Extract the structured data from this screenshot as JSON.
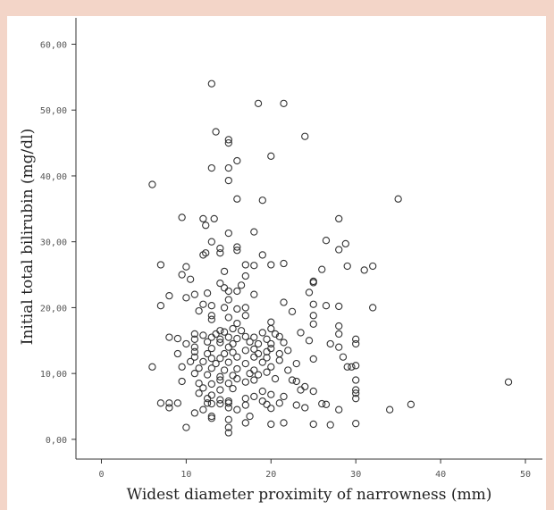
{
  "chart_data": {
    "type": "scatter",
    "xlabel": "Widest diameter proximity of narrowness (mm)",
    "ylabel": "Initial total bilirubin (mg/dl)",
    "xlim": [
      -3,
      52
    ],
    "ylim": [
      -3,
      64
    ],
    "x_ticks": [
      0,
      10,
      20,
      30,
      40,
      50
    ],
    "x_tick_labels": [
      "0",
      "10",
      "20",
      "30",
      "40",
      "50"
    ],
    "y_ticks": [
      0,
      10,
      20,
      30,
      40,
      50,
      60
    ],
    "y_tick_labels": [
      "0,00",
      "10,00",
      "20,00",
      "30,00",
      "40,00",
      "50,00",
      "60,00"
    ],
    "grid": false,
    "marker": "hollow-circle",
    "marker_color": "#333333",
    "points": [
      [
        13,
        54
      ],
      [
        18.5,
        51
      ],
      [
        21.5,
        51
      ],
      [
        13.5,
        46.7
      ],
      [
        15,
        45.5
      ],
      [
        15,
        45
      ],
      [
        24,
        46
      ],
      [
        16,
        42.3
      ],
      [
        13,
        41.2
      ],
      [
        15,
        41.2
      ],
      [
        20,
        43
      ],
      [
        15,
        39.3
      ],
      [
        6,
        38.7
      ],
      [
        16,
        36.5
      ],
      [
        19,
        36.3
      ],
      [
        35,
        36.5
      ],
      [
        9.5,
        33.7
      ],
      [
        12,
        33.5
      ],
      [
        13.3,
        33.5
      ],
      [
        28,
        33.5
      ],
      [
        12.3,
        32.5
      ],
      [
        15,
        31.3
      ],
      [
        18,
        31.5
      ],
      [
        13,
        30
      ],
      [
        26.5,
        30.2
      ],
      [
        28.8,
        29.7
      ],
      [
        16,
        29.2
      ],
      [
        16,
        28.7
      ],
      [
        28,
        28.8
      ],
      [
        12.3,
        28.3
      ],
      [
        12,
        28
      ],
      [
        14,
        29
      ],
      [
        14,
        28.3
      ],
      [
        19,
        28
      ],
      [
        7,
        26.5
      ],
      [
        10,
        26.2
      ],
      [
        17,
        26.5
      ],
      [
        18,
        26.4
      ],
      [
        20,
        26.5
      ],
      [
        21.5,
        26.7
      ],
      [
        26,
        25.8
      ],
      [
        29,
        26.3
      ],
      [
        31,
        25.7
      ],
      [
        32,
        26.3
      ],
      [
        9.5,
        25
      ],
      [
        14.5,
        25.5
      ],
      [
        10.5,
        24.3
      ],
      [
        17,
        24.8
      ],
      [
        25,
        24
      ],
      [
        25,
        23.8
      ],
      [
        14,
        23.7
      ],
      [
        16.5,
        23.4
      ],
      [
        15,
        22.5
      ],
      [
        11,
        22
      ],
      [
        12.5,
        22.2
      ],
      [
        14.5,
        23
      ],
      [
        16,
        22.5
      ],
      [
        18,
        22
      ],
      [
        24.5,
        22.3
      ],
      [
        8,
        21.8
      ],
      [
        10,
        21.5
      ],
      [
        15,
        21.2
      ],
      [
        21.5,
        20.8
      ],
      [
        7,
        20.3
      ],
      [
        12,
        20.5
      ],
      [
        13,
        20.3
      ],
      [
        14.5,
        20
      ],
      [
        16,
        19.8
      ],
      [
        17,
        20
      ],
      [
        22.5,
        19.4
      ],
      [
        25,
        20.5
      ],
      [
        26.5,
        20.3
      ],
      [
        28,
        20.2
      ],
      [
        32,
        20
      ],
      [
        11.5,
        19.5
      ],
      [
        13,
        18.8
      ],
      [
        15,
        18.5
      ],
      [
        17,
        18.8
      ],
      [
        25,
        18.8
      ],
      [
        13,
        18.2
      ],
      [
        16,
        17.6
      ],
      [
        20,
        17.8
      ],
      [
        25,
        17.5
      ],
      [
        28,
        17.2
      ],
      [
        20,
        16.8
      ],
      [
        14,
        16.5
      ],
      [
        15.5,
        16.8
      ],
      [
        16.5,
        16.5
      ],
      [
        11,
        16
      ],
      [
        12,
        15.8
      ],
      [
        13.5,
        16
      ],
      [
        14.5,
        16.3
      ],
      [
        17,
        15.6
      ],
      [
        19,
        16.2
      ],
      [
        20.5,
        16
      ],
      [
        23.5,
        16.2
      ],
      [
        28,
        16
      ],
      [
        8,
        15.5
      ],
      [
        9,
        15.3
      ],
      [
        11,
        15.2
      ],
      [
        13,
        15.5
      ],
      [
        14,
        15.2
      ],
      [
        15,
        15.5
      ],
      [
        16,
        15.3
      ],
      [
        18,
        15.5
      ],
      [
        19.5,
        15.2
      ],
      [
        21,
        15.6
      ],
      [
        24.5,
        15
      ],
      [
        30,
        15.2
      ],
      [
        10,
        14.5
      ],
      [
        12.5,
        14.8
      ],
      [
        14,
        14.7
      ],
      [
        15.5,
        14.5
      ],
      [
        17.5,
        14.8
      ],
      [
        18.5,
        14.5
      ],
      [
        20,
        14.5
      ],
      [
        21.5,
        14.7
      ],
      [
        27,
        14.5
      ],
      [
        30,
        14.5
      ],
      [
        11,
        14
      ],
      [
        13,
        13.8
      ],
      [
        15,
        14
      ],
      [
        17,
        13.5
      ],
      [
        18,
        13.7
      ],
      [
        20,
        13.8
      ],
      [
        22,
        13.5
      ],
      [
        28,
        14
      ],
      [
        9,
        13
      ],
      [
        11,
        13.3
      ],
      [
        12.5,
        13
      ],
      [
        14.5,
        13
      ],
      [
        15.5,
        13.2
      ],
      [
        18.5,
        13
      ],
      [
        19.5,
        13.3
      ],
      [
        21,
        13
      ],
      [
        11,
        12.5
      ],
      [
        13,
        12.3
      ],
      [
        14,
        12.3
      ],
      [
        16,
        12.5
      ],
      [
        18,
        12.5
      ],
      [
        19.5,
        12.4
      ],
      [
        25,
        12.2
      ],
      [
        28.5,
        12.5
      ],
      [
        10.5,
        11.8
      ],
      [
        12,
        11.8
      ],
      [
        13.5,
        11.5
      ],
      [
        15,
        11.7
      ],
      [
        17,
        11.5
      ],
      [
        19,
        11.7
      ],
      [
        21,
        12
      ],
      [
        23,
        11.5
      ],
      [
        30,
        11.2
      ],
      [
        6,
        11
      ],
      [
        9.5,
        11
      ],
      [
        11.5,
        10.8
      ],
      [
        13,
        10.8
      ],
      [
        14.5,
        10.5
      ],
      [
        16,
        10.7
      ],
      [
        18,
        10.5
      ],
      [
        20,
        11
      ],
      [
        22,
        10.5
      ],
      [
        29,
        11
      ],
      [
        29.5,
        11
      ],
      [
        11,
        10
      ],
      [
        12.5,
        9.8
      ],
      [
        14,
        9.5
      ],
      [
        15.5,
        9.7
      ],
      [
        17.5,
        10
      ],
      [
        18.5,
        9.8
      ],
      [
        19.5,
        10.2
      ],
      [
        14,
        9
      ],
      [
        16,
        9.2
      ],
      [
        18,
        9
      ],
      [
        20.5,
        9.2
      ],
      [
        22.5,
        9
      ],
      [
        23,
        8.8
      ],
      [
        30,
        9
      ],
      [
        9.5,
        8.8
      ],
      [
        11.5,
        8.5
      ],
      [
        13,
        8.4
      ],
      [
        15,
        8.5
      ],
      [
        17,
        8.7
      ],
      [
        24,
        8
      ],
      [
        48,
        8.7
      ],
      [
        12,
        7.8
      ],
      [
        14,
        7.5
      ],
      [
        15.5,
        7.7
      ],
      [
        19,
        7.3
      ],
      [
        23.5,
        7.5
      ],
      [
        25,
        7.3
      ],
      [
        30,
        7.5
      ],
      [
        11.5,
        7
      ],
      [
        13,
        6.7
      ],
      [
        18,
        6.5
      ],
      [
        20,
        6.8
      ],
      [
        21.5,
        6.5
      ],
      [
        30,
        7
      ],
      [
        12.5,
        6.2
      ],
      [
        14,
        6
      ],
      [
        15,
        5.8
      ],
      [
        17,
        6.2
      ],
      [
        19,
        5.8
      ],
      [
        30,
        6.2
      ],
      [
        7,
        5.5
      ],
      [
        8,
        5.5
      ],
      [
        9,
        5.5
      ],
      [
        12.5,
        5.5
      ],
      [
        13,
        5.4
      ],
      [
        14,
        5.4
      ],
      [
        15,
        5.5
      ],
      [
        17,
        5.2
      ],
      [
        19.5,
        5.3
      ],
      [
        21,
        5.5
      ],
      [
        23,
        5.2
      ],
      [
        26,
        5.4
      ],
      [
        26.5,
        5.3
      ],
      [
        36.5,
        5.3
      ],
      [
        8,
        4.8
      ],
      [
        12,
        4.5
      ],
      [
        15,
        4.8
      ],
      [
        16,
        4.5
      ],
      [
        20,
        4.7
      ],
      [
        24,
        4.8
      ],
      [
        28,
        4.5
      ],
      [
        34,
        4.5
      ],
      [
        11,
        4
      ],
      [
        13,
        3.5
      ],
      [
        17.5,
        3.5
      ],
      [
        15,
        3
      ],
      [
        13,
        3.2
      ],
      [
        17,
        2.5
      ],
      [
        20,
        2.3
      ],
      [
        21.5,
        2.5
      ],
      [
        25,
        2.3
      ],
      [
        27,
        2.2
      ],
      [
        30,
        2.4
      ],
      [
        10,
        1.8
      ],
      [
        15,
        1.8
      ],
      [
        15,
        1
      ]
    ]
  }
}
